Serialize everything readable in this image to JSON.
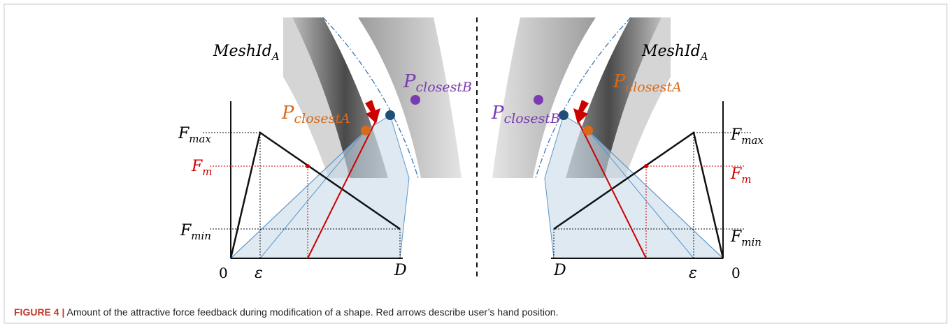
{
  "panels": [
    {
      "mesh_label": {
        "base": "MeshId",
        "sub": "A"
      },
      "point_a": {
        "base": "P",
        "sub": "closestA"
      },
      "point_b": {
        "base": "P",
        "sub": "closestB"
      },
      "f_max": {
        "base": "F",
        "sub": "max"
      },
      "f_m": {
        "base": "F",
        "sub": "m"
      },
      "f_min": {
        "base": "F",
        "sub": "min"
      },
      "origin": "0",
      "epsilon": "ε",
      "distance": "D"
    },
    {
      "mesh_label": {
        "base": "MeshId",
        "sub": "A"
      },
      "point_a": {
        "base": "P",
        "sub": "closestA"
      },
      "point_b": {
        "base": "P",
        "sub": "closestB"
      },
      "f_max": {
        "base": "F",
        "sub": "max"
      },
      "f_m": {
        "base": "F",
        "sub": "m"
      },
      "f_min": {
        "base": "F",
        "sub": "min"
      },
      "origin": "0",
      "epsilon": "ε",
      "distance": "D"
    }
  ],
  "caption": {
    "label": "FIGURE 4 |",
    "text": "Amount of the attractive force feedback during modification of a shape. Red arrows describe user’s hand position."
  }
}
